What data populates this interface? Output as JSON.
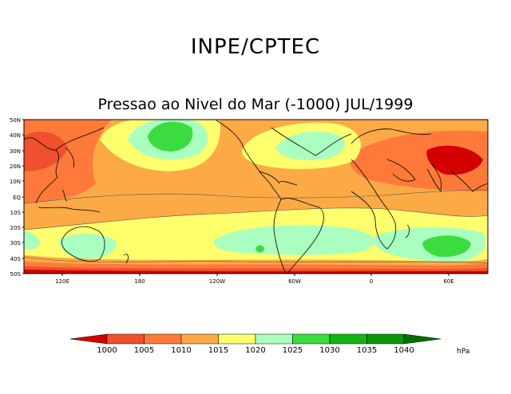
{
  "header": {
    "title": "INPE/CPTEC",
    "subtitle": "Pressao ao Nivel do Mar (-1000) JUL/1999"
  },
  "axes": {
    "lat_labels": [
      "50N",
      "40N",
      "30N",
      "20N",
      "10N",
      "EQ",
      "10S",
      "20S",
      "30S",
      "40S",
      "50S"
    ],
    "lon_labels": [
      "120E",
      "180",
      "120W",
      "60W",
      "0",
      "60E"
    ]
  },
  "legend": {
    "unit": "hPa",
    "ticks": [
      "1000",
      "1005",
      "1010",
      "1015",
      "1020",
      "1025",
      "1030",
      "1035",
      "1040"
    ],
    "colors": [
      "#d20000",
      "#f0502d",
      "#ff7a3a",
      "#fbaa46",
      "#ffff6e",
      "#aaffc0",
      "#3cdc40",
      "#14b414",
      "#0a960a",
      "#006e00"
    ]
  },
  "colors": {
    "c1005": "#f0502d",
    "c1010": "#ff7a3a",
    "c1015": "#fbaa46",
    "c1020": "#ffff6e",
    "c1025": "#aaffc0",
    "c1030": "#3cdc40",
    "c995": "#d20000"
  }
}
